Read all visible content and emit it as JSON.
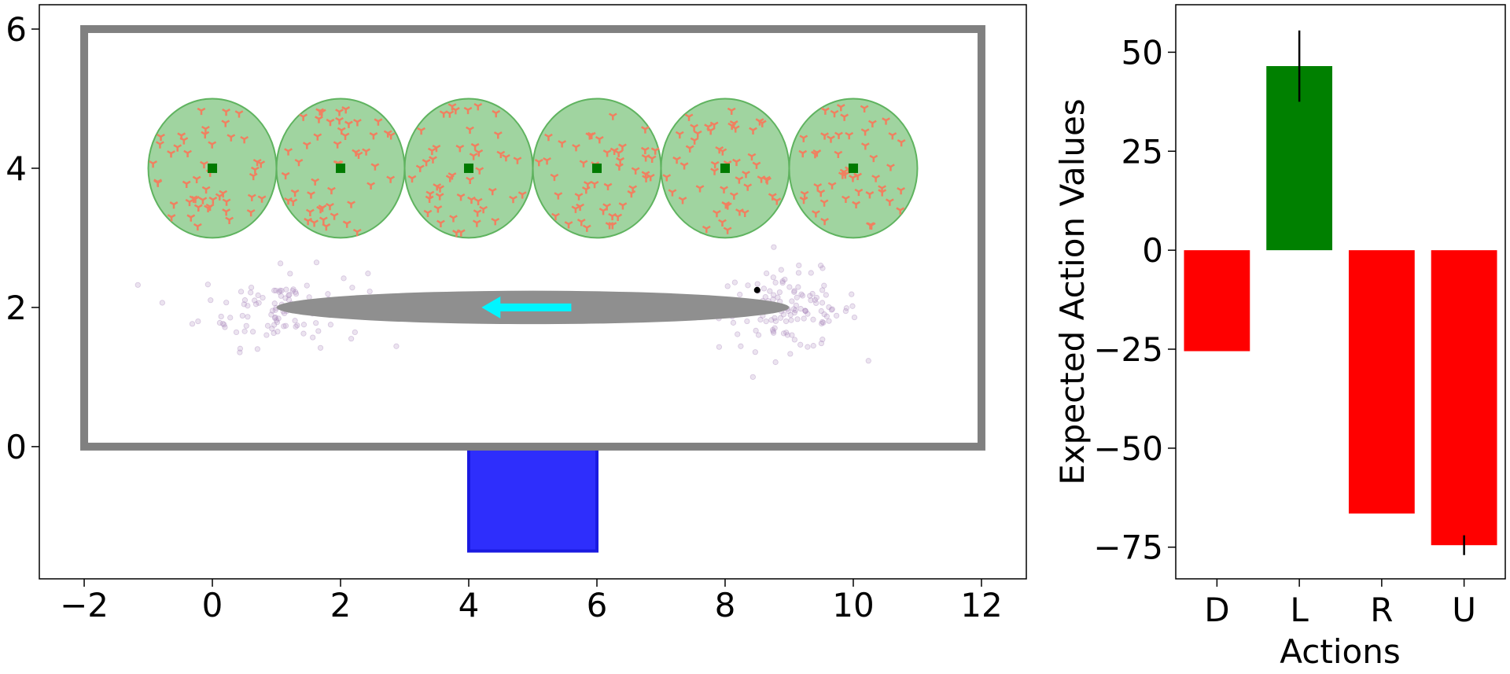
{
  "chart_data": [
    {
      "type": "scatter",
      "xlim": [
        -2.7,
        12.7
      ],
      "ylim": [
        -1.9,
        6.35
      ],
      "xticks": [
        -2,
        0,
        2,
        4,
        6,
        8,
        10,
        12
      ],
      "yticks": [
        0,
        2,
        4,
        6
      ],
      "grid": false,
      "arena": {
        "x0": -2,
        "y0": 0,
        "x1": 12,
        "y1": 6,
        "color": "#808080"
      },
      "goal_zone": {
        "x0": 4,
        "y0": -1.5,
        "x1": 6,
        "y1": 0,
        "color": "#2e2efc"
      },
      "circles": [
        {
          "cx": 0,
          "cy": 4,
          "r": 1
        },
        {
          "cx": 2,
          "cy": 4,
          "r": 1
        },
        {
          "cx": 4,
          "cy": 4,
          "r": 1
        },
        {
          "cx": 6,
          "cy": 4,
          "r": 1
        },
        {
          "cx": 8,
          "cy": 4,
          "r": 1
        },
        {
          "cx": 10,
          "cy": 4,
          "r": 1
        }
      ],
      "circle_color": "#8fcc8f",
      "center_marker_color": "#007a00",
      "tri_marker_color": "#f08060",
      "ellipse": {
        "cx": 5,
        "cy": 2,
        "rx": 4,
        "ry": 0.24,
        "color": "#8f8f8f"
      },
      "arrow": {
        "x_from": 5.6,
        "x_to": 4.2,
        "y": 2,
        "color": "#00f5ff"
      },
      "agent_point": {
        "x": 8.5,
        "y": 2.25
      },
      "cloud_color": "#b090c0",
      "point_clouds": [
        {
          "cx": 1.1,
          "cy": 2.0,
          "sx": 0.65,
          "sy": 0.28,
          "n": 110
        },
        {
          "cx": 9.0,
          "cy": 1.95,
          "sx": 0.55,
          "sy": 0.28,
          "n": 130
        }
      ]
    },
    {
      "type": "bar",
      "categories": [
        "D",
        "L",
        "R",
        "U"
      ],
      "values": [
        -25.5,
        46.5,
        -66.5,
        -74.5
      ],
      "errors": [
        0,
        9,
        0,
        2.5
      ],
      "colors": [
        "#ff0000",
        "#008000",
        "#ff0000",
        "#ff0000"
      ],
      "xlabel": "Actions",
      "ylabel": "Expected Action Values",
      "ylim": [
        -83,
        62
      ],
      "yticks": [
        50,
        25,
        0,
        -25,
        -50,
        -75
      ]
    }
  ]
}
